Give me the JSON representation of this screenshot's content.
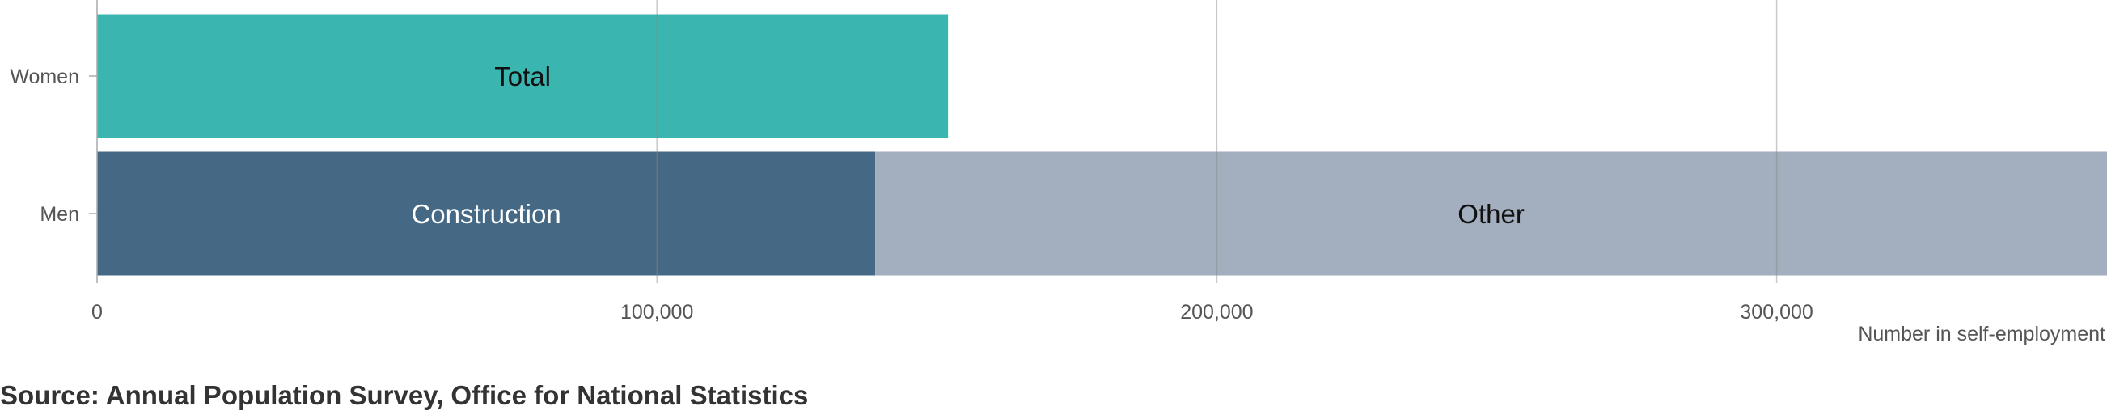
{
  "chart_data": {
    "type": "bar",
    "orientation": "horizontal",
    "stacked": true,
    "categories": [
      "Women",
      "Men"
    ],
    "segments": [
      {
        "category": "Women",
        "label": "Total",
        "start": 0,
        "value": 152000,
        "color": "#3bb5b0",
        "text_color": "#111111"
      },
      {
        "category": "Men",
        "label": "Construction",
        "start": 0,
        "value": 139000,
        "color": "#456884",
        "text_color": "#ffffff"
      },
      {
        "category": "Men",
        "label": "Other",
        "start": 139000,
        "value": 220000,
        "color": "#a3aebe",
        "text_color": "#111111"
      }
    ],
    "x_ticks": [
      0,
      100000,
      200000,
      300000
    ],
    "x_tick_labels": [
      "0",
      "100,000",
      "200,000",
      "300,000"
    ],
    "xlim": [
      0,
      359000
    ],
    "xlabel": "Number in self-employment",
    "ylabel": "",
    "grid": "vertical"
  },
  "source": "Source: Annual Population Survey, Office for National Statistics"
}
